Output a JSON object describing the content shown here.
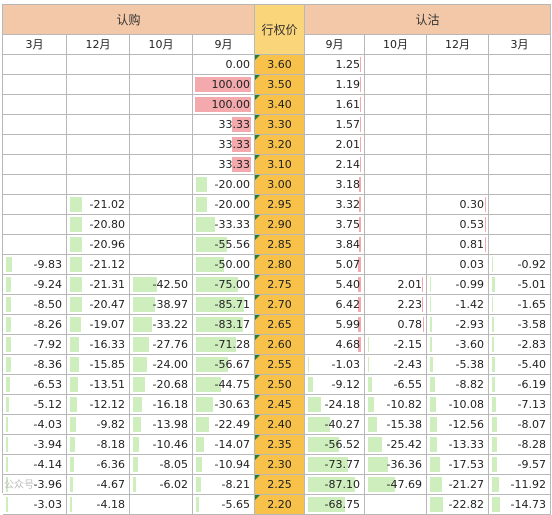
{
  "headers": {
    "call": "认购",
    "strike": "行权价",
    "put": "认沽"
  },
  "call_months": [
    "3月",
    "12月",
    "10月",
    "9月"
  ],
  "put_months": [
    "9月",
    "10月",
    "12月",
    "3月"
  ],
  "colors": {
    "header_bg": "#f2c8a8",
    "strike_bg": "#f7c14a",
    "positive_bar": "#f4a9ad",
    "negative_bar": "#cfeebd",
    "marker": "#1d7d3a"
  },
  "watermark": "公众号",
  "rows": [
    {
      "strike": "3.60",
      "call": [
        "",
        "",
        "",
        "0.00"
      ],
      "put": [
        "1.25",
        "",
        "",
        ""
      ]
    },
    {
      "strike": "3.50",
      "call": [
        "",
        "",
        "",
        "100.00"
      ],
      "put": [
        "1.19",
        "",
        "",
        ""
      ]
    },
    {
      "strike": "3.40",
      "call": [
        "",
        "",
        "",
        "100.00"
      ],
      "put": [
        "1.61",
        "",
        "",
        ""
      ]
    },
    {
      "strike": "3.30",
      "call": [
        "",
        "",
        "",
        "33.33"
      ],
      "put": [
        "1.57",
        "",
        "",
        ""
      ]
    },
    {
      "strike": "3.20",
      "call": [
        "",
        "",
        "",
        "33.33"
      ],
      "put": [
        "2.01",
        "",
        "",
        ""
      ]
    },
    {
      "strike": "3.10",
      "call": [
        "",
        "",
        "",
        "33.33"
      ],
      "put": [
        "2.14",
        "",
        "",
        ""
      ]
    },
    {
      "strike": "3.00",
      "call": [
        "",
        "",
        "",
        "-20.00"
      ],
      "put": [
        "3.18",
        "",
        "",
        ""
      ]
    },
    {
      "strike": "2.95",
      "call": [
        "",
        "-21.02",
        "",
        "-20.00"
      ],
      "put": [
        "3.32",
        "",
        "0.30",
        ""
      ]
    },
    {
      "strike": "2.90",
      "call": [
        "",
        "-20.80",
        "",
        "-33.33"
      ],
      "put": [
        "3.75",
        "",
        "0.53",
        ""
      ]
    },
    {
      "strike": "2.85",
      "call": [
        "",
        "-20.96",
        "",
        "-55.56"
      ],
      "put": [
        "3.84",
        "",
        "0.81",
        ""
      ]
    },
    {
      "strike": "2.80",
      "call": [
        "-9.83",
        "-21.12",
        "",
        "-50.00"
      ],
      "put": [
        "5.07",
        "",
        "0.03",
        "-0.92"
      ]
    },
    {
      "strike": "2.75",
      "call": [
        "-9.24",
        "-21.31",
        "-42.50",
        "-75.00"
      ],
      "put": [
        "5.40",
        "2.01",
        "-0.99",
        "-5.01"
      ]
    },
    {
      "strike": "2.70",
      "call": [
        "-8.50",
        "-20.47",
        "-38.97",
        "-85.71"
      ],
      "put": [
        "6.42",
        "2.23",
        "-1.42",
        "-1.65"
      ]
    },
    {
      "strike": "2.65",
      "call": [
        "-8.26",
        "-19.07",
        "-33.22",
        "-83.17"
      ],
      "put": [
        "5.99",
        "0.78",
        "-2.93",
        "-3.58"
      ]
    },
    {
      "strike": "2.60",
      "call": [
        "-7.92",
        "-16.33",
        "-27.76",
        "-71.28"
      ],
      "put": [
        "4.68",
        "-2.15",
        "-3.60",
        "-2.83"
      ]
    },
    {
      "strike": "2.55",
      "call": [
        "-8.36",
        "-15.85",
        "-24.00",
        "-56.67"
      ],
      "put": [
        "-1.03",
        "-2.43",
        "-5.38",
        "-5.40"
      ]
    },
    {
      "strike": "2.50",
      "call": [
        "-6.53",
        "-13.51",
        "-20.68",
        "-44.75"
      ],
      "put": [
        "-9.12",
        "-6.55",
        "-8.82",
        "-6.19"
      ]
    },
    {
      "strike": "2.45",
      "call": [
        "-5.12",
        "-12.12",
        "-16.18",
        "-30.63"
      ],
      "put": [
        "-24.18",
        "-10.82",
        "-10.08",
        "-7.13"
      ]
    },
    {
      "strike": "2.40",
      "call": [
        "-4.03",
        "-9.82",
        "-13.98",
        "-22.49"
      ],
      "put": [
        "-40.27",
        "-15.38",
        "-12.56",
        "-8.07"
      ]
    },
    {
      "strike": "2.35",
      "call": [
        "-3.94",
        "-8.18",
        "-10.46",
        "-14.07"
      ],
      "put": [
        "-56.52",
        "-25.42",
        "-13.33",
        "-8.28"
      ]
    },
    {
      "strike": "2.30",
      "call": [
        "-4.14",
        "-6.36",
        "-8.05",
        "-10.94"
      ],
      "put": [
        "-73.77",
        "-36.36",
        "-17.53",
        "-9.57"
      ]
    },
    {
      "strike": "2.25",
      "call": [
        "-3.96",
        "-4.67",
        "-6.02",
        "-8.21"
      ],
      "put": [
        "-87.10",
        "-47.69",
        "-21.27",
        "-11.92"
      ]
    },
    {
      "strike": "2.20",
      "call": [
        "-3.03",
        "-4.18",
        "",
        "-5.65"
      ],
      "put": [
        "-68.75",
        "",
        "-22.82",
        "-14.73"
      ]
    }
  ]
}
